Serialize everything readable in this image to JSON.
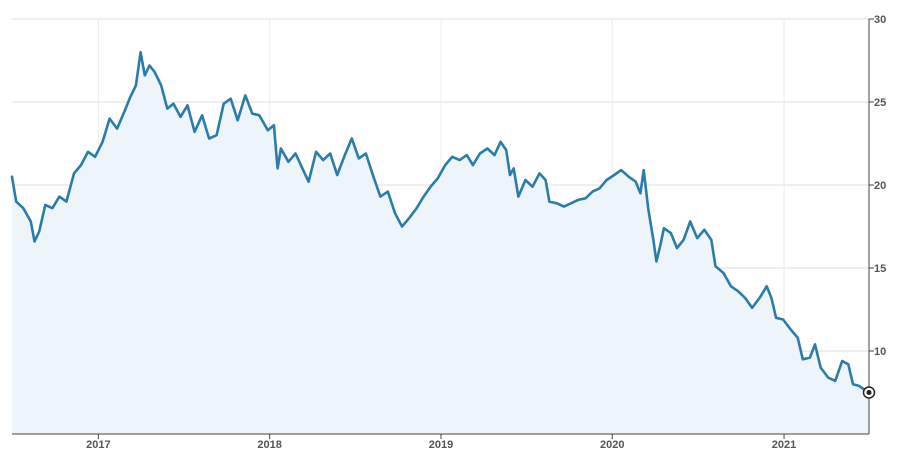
{
  "chart_data": {
    "type": "area",
    "title": "",
    "xlabel": "",
    "ylabel": "",
    "xlim": [
      "2016-07-01",
      "2021-07-01"
    ],
    "ylim": [
      5,
      30
    ],
    "y_ticks": [
      10,
      15,
      20,
      25,
      30
    ],
    "x_ticks": [
      {
        "label": "2017",
        "date": "2017-01-01"
      },
      {
        "label": "2018",
        "date": "2018-01-01"
      },
      {
        "label": "2019",
        "date": "2019-01-01"
      },
      {
        "label": "2020",
        "date": "2020-01-01"
      },
      {
        "label": "2021",
        "date": "2021-01-01"
      }
    ],
    "grid": true,
    "colors": {
      "line": "#2a7da8",
      "fill": "#edf4fa",
      "grid": "#dddddd",
      "axis": "#444444"
    },
    "series": [
      {
        "points": [
          [
            "2016-07-01",
            20.5
          ],
          [
            "2016-07-10",
            19.0
          ],
          [
            "2016-07-25",
            18.6
          ],
          [
            "2016-08-10",
            17.8
          ],
          [
            "2016-08-18",
            16.6
          ],
          [
            "2016-08-28",
            17.2
          ],
          [
            "2016-09-10",
            18.8
          ],
          [
            "2016-09-25",
            18.6
          ],
          [
            "2016-10-10",
            19.3
          ],
          [
            "2016-10-25",
            19.0
          ],
          [
            "2016-11-10",
            20.7
          ],
          [
            "2016-11-25",
            21.2
          ],
          [
            "2016-12-10",
            22.0
          ],
          [
            "2016-12-25",
            21.7
          ],
          [
            "2017-01-10",
            22.6
          ],
          [
            "2017-01-25",
            24.0
          ],
          [
            "2017-02-10",
            23.4
          ],
          [
            "2017-02-25",
            24.4
          ],
          [
            "2017-03-10",
            25.3
          ],
          [
            "2017-03-22",
            26.0
          ],
          [
            "2017-04-01",
            28.0
          ],
          [
            "2017-04-10",
            26.6
          ],
          [
            "2017-04-20",
            27.2
          ],
          [
            "2017-05-01",
            26.8
          ],
          [
            "2017-05-15",
            26.0
          ],
          [
            "2017-05-28",
            24.6
          ],
          [
            "2017-06-10",
            24.9
          ],
          [
            "2017-06-25",
            24.1
          ],
          [
            "2017-07-10",
            24.8
          ],
          [
            "2017-07-25",
            23.2
          ],
          [
            "2017-08-10",
            24.2
          ],
          [
            "2017-08-25",
            22.8
          ],
          [
            "2017-09-10",
            23.0
          ],
          [
            "2017-09-25",
            24.9
          ],
          [
            "2017-10-10",
            25.2
          ],
          [
            "2017-10-25",
            23.9
          ],
          [
            "2017-11-10",
            25.4
          ],
          [
            "2017-11-25",
            24.3
          ],
          [
            "2017-12-10",
            24.2
          ],
          [
            "2017-12-28",
            23.3
          ],
          [
            "2018-01-10",
            23.6
          ],
          [
            "2018-01-18",
            21.0
          ],
          [
            "2018-01-25",
            22.2
          ],
          [
            "2018-02-10",
            21.4
          ],
          [
            "2018-02-25",
            21.9
          ],
          [
            "2018-03-10",
            21.1
          ],
          [
            "2018-03-25",
            20.2
          ],
          [
            "2018-04-10",
            22.0
          ],
          [
            "2018-04-25",
            21.5
          ],
          [
            "2018-05-10",
            21.9
          ],
          [
            "2018-05-25",
            20.6
          ],
          [
            "2018-06-10",
            21.8
          ],
          [
            "2018-06-25",
            22.8
          ],
          [
            "2018-07-10",
            21.6
          ],
          [
            "2018-07-25",
            21.9
          ],
          [
            "2018-08-10",
            20.5
          ],
          [
            "2018-08-25",
            19.3
          ],
          [
            "2018-09-10",
            19.6
          ],
          [
            "2018-09-25",
            18.3
          ],
          [
            "2018-10-10",
            17.5
          ],
          [
            "2018-10-25",
            18.0
          ],
          [
            "2018-11-10",
            18.6
          ],
          [
            "2018-11-25",
            19.3
          ],
          [
            "2018-12-10",
            19.9
          ],
          [
            "2018-12-25",
            20.4
          ],
          [
            "2019-01-10",
            21.2
          ],
          [
            "2019-01-25",
            21.7
          ],
          [
            "2019-02-10",
            21.5
          ],
          [
            "2019-02-25",
            21.8
          ],
          [
            "2019-03-10",
            21.2
          ],
          [
            "2019-03-25",
            21.9
          ],
          [
            "2019-04-10",
            22.2
          ],
          [
            "2019-04-25",
            21.8
          ],
          [
            "2019-05-08",
            22.6
          ],
          [
            "2019-05-20",
            22.1
          ],
          [
            "2019-05-28",
            20.6
          ],
          [
            "2019-06-05",
            21.0
          ],
          [
            "2019-06-15",
            19.3
          ],
          [
            "2019-06-30",
            20.3
          ],
          [
            "2019-07-15",
            19.9
          ],
          [
            "2019-07-30",
            20.7
          ],
          [
            "2019-08-12",
            20.3
          ],
          [
            "2019-08-20",
            19.0
          ],
          [
            "2019-09-05",
            18.9
          ],
          [
            "2019-09-20",
            18.7
          ],
          [
            "2019-10-05",
            18.9
          ],
          [
            "2019-10-20",
            19.1
          ],
          [
            "2019-11-05",
            19.2
          ],
          [
            "2019-11-20",
            19.6
          ],
          [
            "2019-12-05",
            19.8
          ],
          [
            "2019-12-20",
            20.3
          ],
          [
            "2020-01-05",
            20.6
          ],
          [
            "2020-01-20",
            20.9
          ],
          [
            "2020-02-05",
            20.5
          ],
          [
            "2020-02-20",
            20.2
          ],
          [
            "2020-03-01",
            19.5
          ],
          [
            "2020-03-08",
            20.9
          ],
          [
            "2020-03-18",
            18.5
          ],
          [
            "2020-03-28",
            16.8
          ],
          [
            "2020-04-04",
            15.4
          ],
          [
            "2020-04-12",
            16.3
          ],
          [
            "2020-04-20",
            17.4
          ],
          [
            "2020-05-05",
            17.1
          ],
          [
            "2020-05-18",
            16.2
          ],
          [
            "2020-06-01",
            16.7
          ],
          [
            "2020-06-15",
            17.8
          ],
          [
            "2020-06-30",
            16.8
          ],
          [
            "2020-07-15",
            17.3
          ],
          [
            "2020-07-30",
            16.7
          ],
          [
            "2020-08-08",
            15.1
          ],
          [
            "2020-08-25",
            14.7
          ],
          [
            "2020-09-10",
            13.9
          ],
          [
            "2020-09-25",
            13.6
          ],
          [
            "2020-10-10",
            13.2
          ],
          [
            "2020-10-25",
            12.6
          ],
          [
            "2020-11-10",
            13.2
          ],
          [
            "2020-11-25",
            13.9
          ],
          [
            "2020-12-05",
            13.2
          ],
          [
            "2020-12-15",
            12.0
          ],
          [
            "2020-12-30",
            11.9
          ],
          [
            "2021-01-15",
            11.3
          ],
          [
            "2021-01-30",
            10.8
          ],
          [
            "2021-02-10",
            9.5
          ],
          [
            "2021-02-25",
            9.6
          ],
          [
            "2021-03-08",
            10.4
          ],
          [
            "2021-03-20",
            9.0
          ],
          [
            "2021-04-05",
            8.4
          ],
          [
            "2021-04-20",
            8.2
          ],
          [
            "2021-05-05",
            9.4
          ],
          [
            "2021-05-18",
            9.2
          ],
          [
            "2021-05-28",
            8.0
          ],
          [
            "2021-06-10",
            7.9
          ],
          [
            "2021-06-25",
            7.6
          ],
          [
            "2021-07-01",
            7.5
          ]
        ]
      }
    ],
    "last_value_marker": true
  }
}
